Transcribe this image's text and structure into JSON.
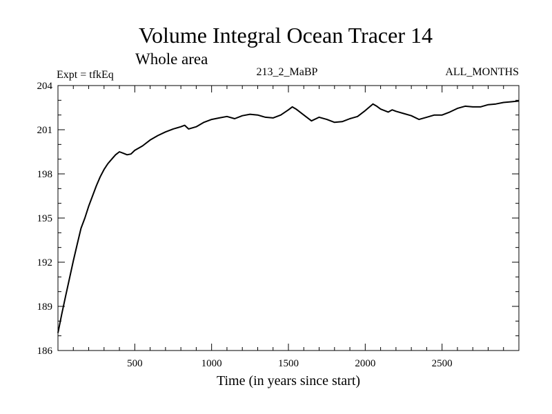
{
  "chart_data": {
    "type": "line",
    "title": "Volume Integral Ocean Tracer 14",
    "subtitle": "Whole area",
    "experiment_label": "Expt = tfkEq",
    "run_label": "213_2_MaBP",
    "period_label": "ALL_MONTHS",
    "xlabel": "Time (in years since start)",
    "ylabel": "",
    "xlim": [
      0,
      3000
    ],
    "ylim": [
      186,
      204
    ],
    "x_ticks": [
      500,
      1000,
      1500,
      2000,
      2500
    ],
    "x_tick_labels": [
      "500",
      "1000",
      "1500",
      "2000",
      "2500"
    ],
    "y_ticks": [
      186,
      189,
      192,
      195,
      198,
      201,
      204
    ],
    "y_tick_labels": [
      "186",
      "189",
      "192",
      "195",
      "198",
      "201",
      "204"
    ],
    "x_minor_step": 100,
    "y_minor_step": 1,
    "grid": false,
    "series": [
      {
        "color": "#000000",
        "x": [
          0,
          25,
          50,
          75,
          100,
          125,
          150,
          175,
          200,
          225,
          250,
          275,
          300,
          325,
          350,
          375,
          400,
          425,
          450,
          475,
          500,
          550,
          600,
          650,
          700,
          750,
          800,
          825,
          850,
          900,
          950,
          1000,
          1050,
          1100,
          1150,
          1200,
          1250,
          1300,
          1350,
          1400,
          1450,
          1500,
          1525,
          1550,
          1600,
          1650,
          1700,
          1750,
          1800,
          1850,
          1900,
          1950,
          2000,
          2050,
          2075,
          2100,
          2150,
          2175,
          2200,
          2250,
          2300,
          2350,
          2400,
          2450,
          2500,
          2550,
          2600,
          2650,
          2700,
          2750,
          2800,
          2850,
          2900,
          2950,
          3000
        ],
        "values": [
          187.2,
          188.5,
          189.7,
          190.9,
          192.1,
          193.2,
          194.3,
          195.0,
          195.8,
          196.5,
          197.2,
          197.8,
          198.3,
          198.7,
          199.0,
          199.3,
          199.5,
          199.4,
          199.3,
          199.35,
          199.6,
          199.9,
          200.3,
          200.6,
          200.85,
          201.05,
          201.2,
          201.3,
          201.05,
          201.2,
          201.5,
          201.7,
          201.8,
          201.9,
          201.75,
          201.95,
          202.05,
          202.0,
          201.85,
          201.8,
          202.0,
          202.35,
          202.55,
          202.4,
          202.0,
          201.6,
          201.85,
          201.7,
          201.5,
          201.55,
          201.75,
          201.9,
          202.3,
          202.75,
          202.6,
          202.4,
          202.2,
          202.35,
          202.25,
          202.1,
          201.95,
          201.7,
          201.85,
          202.0,
          202.0,
          202.2,
          202.45,
          202.6,
          202.55,
          202.55,
          202.7,
          202.75,
          202.85,
          202.9,
          202.95
        ]
      }
    ]
  }
}
